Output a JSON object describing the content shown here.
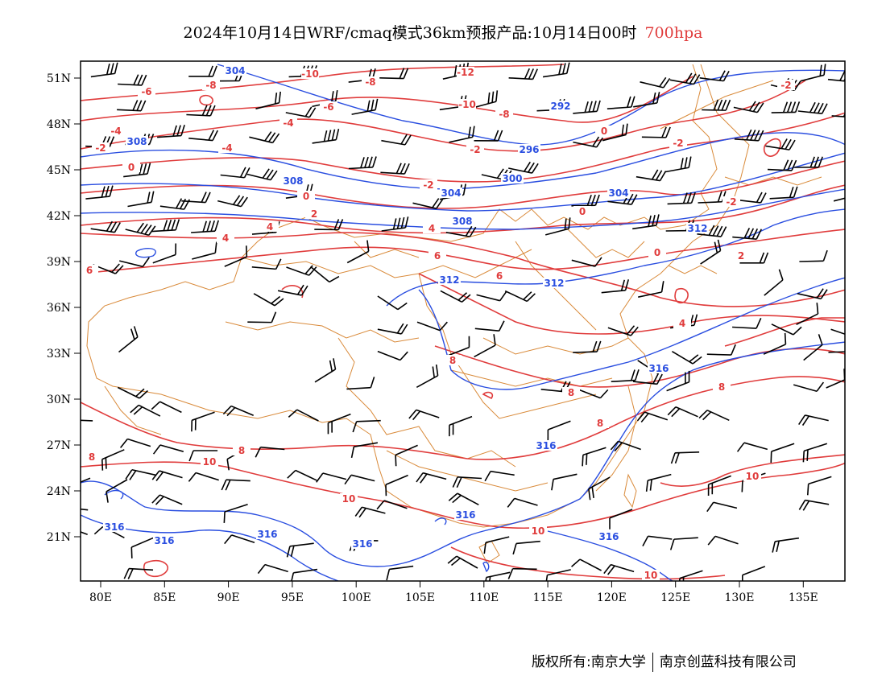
{
  "title": {
    "main": "2024年10月14日WRF/cmaq模式36km预报产品:10月14日00时",
    "level": "700hpa"
  },
  "colors": {
    "temperature": "#e03c3c",
    "geopotential": "#2a4ee0",
    "boundaries": "#d98a3a",
    "wind": "#000000",
    "level_text": "#e03c3c"
  },
  "axes": {
    "x_ticks": [
      "80E",
      "85E",
      "90E",
      "95E",
      "100E",
      "105E",
      "110E",
      "115E",
      "120E",
      "125E",
      "130E",
      "135E"
    ],
    "y_ticks": [
      "51N",
      "48N",
      "45N",
      "42N",
      "39N",
      "36N",
      "33N",
      "30N",
      "27N",
      "24N",
      "21N"
    ],
    "lon_range": [
      78,
      138
    ],
    "lat_range": [
      18,
      52
    ]
  },
  "temperature_labels": [
    "-12",
    "-10",
    "-10",
    "-8",
    "-8",
    "-8",
    "-6",
    "-6",
    "-4",
    "-4",
    "-4",
    "-2",
    "-2",
    "-2",
    "-2",
    "-2",
    "-2",
    "0",
    "0",
    "0",
    "0",
    "0",
    "2",
    "2",
    "4",
    "4",
    "4",
    "4",
    "6",
    "6",
    "6",
    "8",
    "8",
    "8",
    "8",
    "8",
    "8",
    "10",
    "10",
    "10",
    "10",
    "10"
  ],
  "geopotential_labels": [
    "304",
    "292",
    "296",
    "300",
    "304",
    "308",
    "308",
    "304",
    "308",
    "312",
    "312",
    "312",
    "316",
    "316",
    "316",
    "316",
    "316",
    "316",
    "316",
    "316"
  ],
  "footer": {
    "left": "版权所有:南京大学",
    "right": "南京创蓝科技有限公司"
  }
}
